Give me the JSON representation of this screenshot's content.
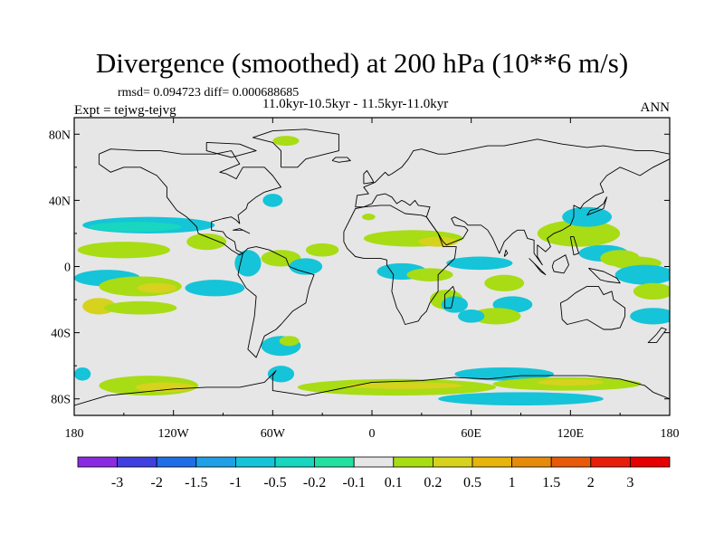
{
  "title": "Divergence (smoothed) at 200 hPa (10**6 m/s)",
  "stats": "rmsd= 0.094723 diff= 0.000688685",
  "experiment": "Expt = tejwg-tejvg",
  "period": "11.0kyr-10.5kyr - 11.5kyr-11.0kyr",
  "season": "ANN",
  "lat_axis": {
    "labels": [
      "80N",
      "40N",
      "0",
      "40S",
      "80S"
    ],
    "values": [
      80,
      40,
      0,
      -40,
      -80
    ],
    "range": [
      -90,
      90
    ]
  },
  "lon_axis": {
    "labels": [
      "180",
      "120W",
      "60W",
      "0",
      "60E",
      "120E",
      "180"
    ],
    "values": [
      -180,
      -120,
      -60,
      0,
      60,
      120,
      180
    ],
    "range": [
      -180,
      180
    ]
  },
  "colorbar": {
    "labels": [
      "-3",
      "-2",
      "-1.5",
      "-1",
      "-0.5",
      "-0.2",
      "-0.1",
      "0.1",
      "0.2",
      "0.5",
      "1",
      "1.5",
      "2",
      "3"
    ],
    "colors": [
      "#8a2be2",
      "#4040e0",
      "#1e6fe6",
      "#1fa0e6",
      "#15c4d8",
      "#18d6c0",
      "#22e0a0",
      "#e6e6e6",
      "#a8dc14",
      "#d6d21e",
      "#e6b40a",
      "#e68a0a",
      "#e65a0a",
      "#e61e0a",
      "#e60000"
    ]
  },
  "map_colors": {
    "background": "#e6e6e6",
    "coast": "#000000"
  },
  "fields": [
    {
      "lon": -135,
      "lat": 25,
      "rlon": 40,
      "rlat": 5,
      "c": 4
    },
    {
      "lon": -143,
      "lat": 24,
      "rlon": 28,
      "rlat": 3,
      "c": 5
    },
    {
      "lon": -150,
      "lat": 10,
      "rlon": 28,
      "rlat": 5,
      "c": 8
    },
    {
      "lon": -100,
      "lat": 15,
      "rlon": 12,
      "rlat": 5,
      "c": 8
    },
    {
      "lon": -160,
      "lat": -7,
      "rlon": 20,
      "rlat": 5,
      "c": 4
    },
    {
      "lon": -140,
      "lat": -12,
      "rlon": 25,
      "rlat": 6,
      "c": 8
    },
    {
      "lon": -130,
      "lat": -13,
      "rlon": 12,
      "rlat": 3,
      "c": 9
    },
    {
      "lon": -95,
      "lat": -13,
      "rlon": 18,
      "rlat": 5,
      "c": 4
    },
    {
      "lon": -165,
      "lat": -24,
      "rlon": 10,
      "rlat": 5,
      "c": 9
    },
    {
      "lon": -140,
      "lat": -25,
      "rlon": 22,
      "rlat": 4,
      "c": 8
    },
    {
      "lon": -75,
      "lat": 2,
      "rlon": 8,
      "rlat": 8,
      "c": 4
    },
    {
      "lon": -55,
      "lat": 5,
      "rlon": 12,
      "rlat": 5,
      "c": 8
    },
    {
      "lon": -40,
      "lat": 0,
      "rlon": 10,
      "rlat": 5,
      "c": 4
    },
    {
      "lon": -30,
      "lat": 10,
      "rlon": 10,
      "rlat": 4,
      "c": 8
    },
    {
      "lon": -60,
      "lat": 40,
      "rlon": 6,
      "rlat": 4,
      "c": 4
    },
    {
      "lon": -55,
      "lat": -48,
      "rlon": 12,
      "rlat": 6,
      "c": 4
    },
    {
      "lon": -50,
      "lat": -45,
      "rlon": 6,
      "rlat": 3,
      "c": 8
    },
    {
      "lon": -2,
      "lat": 30,
      "rlon": 4,
      "rlat": 2,
      "c": 8
    },
    {
      "lon": 25,
      "lat": 17,
      "rlon": 30,
      "rlat": 5,
      "c": 8
    },
    {
      "lon": 40,
      "lat": 15,
      "rlon": 12,
      "rlat": 3,
      "c": 9
    },
    {
      "lon": 18,
      "lat": -3,
      "rlon": 15,
      "rlat": 5,
      "c": 4
    },
    {
      "lon": 35,
      "lat": -5,
      "rlon": 14,
      "rlat": 4,
      "c": 8
    },
    {
      "lon": 65,
      "lat": 2,
      "rlon": 20,
      "rlat": 4,
      "c": 4
    },
    {
      "lon": 45,
      "lat": -20,
      "rlon": 10,
      "rlat": 6,
      "c": 8
    },
    {
      "lon": 50,
      "lat": -23,
      "rlon": 8,
      "rlat": 5,
      "c": 4
    },
    {
      "lon": 80,
      "lat": -10,
      "rlon": 12,
      "rlat": 5,
      "c": 8
    },
    {
      "lon": 85,
      "lat": -23,
      "rlon": 12,
      "rlat": 5,
      "c": 4
    },
    {
      "lon": 75,
      "lat": -30,
      "rlon": 15,
      "rlat": 5,
      "c": 8
    },
    {
      "lon": 60,
      "lat": -30,
      "rlon": 8,
      "rlat": 4,
      "c": 4
    },
    {
      "lon": 125,
      "lat": 20,
      "rlon": 25,
      "rlat": 8,
      "c": 8
    },
    {
      "lon": 130,
      "lat": 30,
      "rlon": 15,
      "rlat": 6,
      "c": 4
    },
    {
      "lon": 140,
      "lat": 8,
      "rlon": 15,
      "rlat": 5,
      "c": 4
    },
    {
      "lon": 150,
      "lat": 5,
      "rlon": 12,
      "rlat": 5,
      "c": 8
    },
    {
      "lon": 160,
      "lat": 2,
      "rlon": 15,
      "rlat": 4,
      "c": 8
    },
    {
      "lon": 165,
      "lat": -5,
      "rlon": 18,
      "rlat": 6,
      "c": 4
    },
    {
      "lon": 170,
      "lat": -15,
      "rlon": 12,
      "rlat": 5,
      "c": 8
    },
    {
      "lon": 170,
      "lat": -30,
      "rlon": 14,
      "rlat": 5,
      "c": 4
    },
    {
      "lon": -135,
      "lat": -72,
      "rlon": 30,
      "rlat": 6,
      "c": 8
    },
    {
      "lon": -125,
      "lat": -73,
      "rlon": 18,
      "rlat": 3,
      "c": 9
    },
    {
      "lon": 15,
      "lat": -73,
      "rlon": 60,
      "rlat": 5,
      "c": 8
    },
    {
      "lon": 20,
      "lat": -72,
      "rlon": 35,
      "rlat": 2,
      "c": 9
    },
    {
      "lon": 80,
      "lat": -65,
      "rlon": 30,
      "rlat": 4,
      "c": 4
    },
    {
      "lon": 118,
      "lat": -71,
      "rlon": 45,
      "rlat": 4,
      "c": 8
    },
    {
      "lon": 120,
      "lat": -70,
      "rlon": 20,
      "rlat": 2,
      "c": 9
    },
    {
      "lon": 90,
      "lat": -80,
      "rlon": 50,
      "rlat": 4,
      "c": 4
    },
    {
      "lon": -175,
      "lat": -65,
      "rlon": 5,
      "rlat": 4,
      "c": 4
    },
    {
      "lon": -55,
      "lat": -65,
      "rlon": 8,
      "rlat": 5,
      "c": 4
    },
    {
      "lon": -52,
      "lat": 76,
      "rlon": 8,
      "rlat": 3,
      "c": 8
    }
  ],
  "coastlines": [
    [
      [
        -165,
        68
      ],
      [
        -158,
        71
      ],
      [
        -140,
        70
      ],
      [
        -128,
        70
      ],
      [
        -115,
        68
      ],
      [
        -95,
        68
      ],
      [
        -85,
        70
      ],
      [
        -80,
        62
      ],
      [
        -92,
        57
      ],
      [
        -88,
        56
      ],
      [
        -82,
        53
      ],
      [
        -78,
        60
      ],
      [
        -65,
        60
      ],
      [
        -60,
        55
      ],
      [
        -55,
        48
      ],
      [
        -65,
        45
      ],
      [
        -70,
        42
      ],
      [
        -75,
        38
      ],
      [
        -76,
        35
      ],
      [
        -81,
        31
      ],
      [
        -80,
        26
      ],
      [
        -82,
        28
      ],
      [
        -85,
        30
      ],
      [
        -90,
        29
      ],
      [
        -97,
        27
      ],
      [
        -97,
        22
      ],
      [
        -90,
        21
      ],
      [
        -88,
        18
      ],
      [
        -83,
        15
      ],
      [
        -82,
        10
      ],
      [
        -78,
        8
      ],
      [
        -80,
        7
      ],
      [
        -85,
        10
      ],
      [
        -90,
        14
      ],
      [
        -95,
        16
      ],
      [
        -105,
        20
      ],
      [
        -106,
        24
      ],
      [
        -112,
        30
      ],
      [
        -115,
        32
      ],
      [
        -118,
        34
      ],
      [
        -124,
        42
      ],
      [
        -124,
        48
      ],
      [
        -130,
        55
      ],
      [
        -140,
        60
      ],
      [
        -150,
        60
      ],
      [
        -158,
        57
      ],
      [
        -165,
        62
      ],
      [
        -165,
        68
      ]
    ],
    [
      [
        -78,
        8
      ],
      [
        -75,
        11
      ],
      [
        -70,
        12
      ],
      [
        -62,
        10
      ],
      [
        -52,
        5
      ],
      [
        -50,
        0
      ],
      [
        -45,
        -2
      ],
      [
        -35,
        -5
      ],
      [
        -38,
        -13
      ],
      [
        -40,
        -22
      ],
      [
        -48,
        -27
      ],
      [
        -55,
        -35
      ],
      [
        -58,
        -38
      ],
      [
        -65,
        -42
      ],
      [
        -68,
        -50
      ],
      [
        -70,
        -55
      ],
      [
        -75,
        -50
      ],
      [
        -73,
        -40
      ],
      [
        -71,
        -30
      ],
      [
        -70,
        -18
      ],
      [
        -76,
        -13
      ],
      [
        -81,
        -5
      ],
      [
        -80,
        0
      ],
      [
        -78,
        8
      ]
    ],
    [
      [
        -55,
        60
      ],
      [
        -45,
        60
      ],
      [
        -40,
        65
      ],
      [
        -20,
        70
      ],
      [
        -20,
        80
      ],
      [
        -40,
        83
      ],
      [
        -60,
        82
      ],
      [
        -72,
        78
      ],
      [
        -60,
        75
      ],
      [
        -55,
        70
      ],
      [
        -55,
        60
      ]
    ],
    [
      [
        -10,
        36
      ],
      [
        -9,
        43
      ],
      [
        -2,
        44
      ],
      [
        -5,
        48
      ],
      [
        2,
        51
      ],
      [
        5,
        54
      ],
      [
        8,
        57
      ],
      [
        10,
        55
      ],
      [
        12,
        56
      ],
      [
        18,
        60
      ],
      [
        22,
        65
      ],
      [
        25,
        70
      ],
      [
        30,
        71
      ],
      [
        40,
        68
      ],
      [
        45,
        68
      ],
      [
        55,
        70
      ],
      [
        70,
        73
      ],
      [
        80,
        73
      ],
      [
        100,
        77
      ],
      [
        115,
        74
      ],
      [
        130,
        72
      ],
      [
        140,
        73
      ],
      [
        160,
        70
      ],
      [
        170,
        70
      ],
      [
        180,
        68
      ],
      [
        180,
        65
      ],
      [
        170,
        60
      ],
      [
        162,
        55
      ],
      [
        155,
        58
      ],
      [
        150,
        60
      ],
      [
        142,
        55
      ],
      [
        138,
        50
      ],
      [
        140,
        45
      ],
      [
        135,
        43
      ],
      [
        128,
        38
      ],
      [
        126,
        35
      ],
      [
        122,
        37
      ],
      [
        122,
        30
      ],
      [
        120,
        25
      ],
      [
        115,
        22
      ],
      [
        110,
        20
      ],
      [
        106,
        17
      ],
      [
        108,
        12
      ],
      [
        105,
        9
      ],
      [
        100,
        13
      ],
      [
        100,
        6
      ],
      [
        103,
        1
      ],
      [
        98,
        8
      ],
      [
        98,
        16
      ],
      [
        94,
        17
      ],
      [
        92,
        22
      ],
      [
        88,
        22
      ],
      [
        85,
        20
      ],
      [
        80,
        15
      ],
      [
        77,
        8
      ],
      [
        73,
        17
      ],
      [
        70,
        22
      ],
      [
        66,
        25
      ],
      [
        58,
        25
      ],
      [
        56,
        27
      ],
      [
        50,
        30
      ],
      [
        48,
        29
      ],
      [
        50,
        25
      ],
      [
        56,
        24
      ],
      [
        58,
        22
      ],
      [
        55,
        17
      ],
      [
        45,
        13
      ],
      [
        43,
        15
      ],
      [
        40,
        20
      ],
      [
        35,
        27
      ],
      [
        33,
        30
      ],
      [
        35,
        36
      ],
      [
        28,
        37
      ],
      [
        26,
        40
      ],
      [
        23,
        37
      ],
      [
        20,
        39
      ],
      [
        18,
        40
      ],
      [
        15,
        38
      ],
      [
        12,
        42
      ],
      [
        8,
        44
      ],
      [
        3,
        43
      ],
      [
        0,
        38
      ],
      [
        -5,
        36
      ],
      [
        -10,
        36
      ]
    ],
    [
      [
        -17,
        21
      ],
      [
        -10,
        35
      ],
      [
        -5,
        36
      ],
      [
        5,
        37
      ],
      [
        11,
        37
      ],
      [
        20,
        32
      ],
      [
        30,
        31
      ],
      [
        33,
        30
      ],
      [
        35,
        27
      ],
      [
        40,
        20
      ],
      [
        43,
        12
      ],
      [
        51,
        12
      ],
      [
        50,
        5
      ],
      [
        45,
        0
      ],
      [
        40,
        -5
      ],
      [
        40,
        -15
      ],
      [
        35,
        -22
      ],
      [
        33,
        -27
      ],
      [
        30,
        -30
      ],
      [
        28,
        -33
      ],
      [
        20,
        -35
      ],
      [
        18,
        -30
      ],
      [
        15,
        -25
      ],
      [
        12,
        -15
      ],
      [
        13,
        -5
      ],
      [
        9,
        1
      ],
      [
        9,
        4
      ],
      [
        5,
        5
      ],
      [
        -5,
        5
      ],
      [
        -10,
        6
      ],
      [
        -15,
        11
      ],
      [
        -17,
        15
      ],
      [
        -17,
        21
      ]
    ],
    [
      [
        44,
        -25
      ],
      [
        48,
        -25
      ],
      [
        50,
        -15
      ],
      [
        49,
        -12
      ],
      [
        44,
        -17
      ],
      [
        44,
        -25
      ]
    ],
    [
      [
        114,
        -22
      ],
      [
        118,
        -20
      ],
      [
        123,
        -16
      ],
      [
        130,
        -12
      ],
      [
        137,
        -12
      ],
      [
        140,
        -17
      ],
      [
        145,
        -15
      ],
      [
        146,
        -20
      ],
      [
        153,
        -25
      ],
      [
        153,
        -30
      ],
      [
        150,
        -37
      ],
      [
        145,
        -38
      ],
      [
        140,
        -38
      ],
      [
        135,
        -35
      ],
      [
        130,
        -32
      ],
      [
        118,
        -35
      ],
      [
        115,
        -32
      ],
      [
        114,
        -22
      ]
    ],
    [
      [
        -180,
        -84
      ],
      [
        -160,
        -78
      ],
      [
        -140,
        -76
      ],
      [
        -120,
        -74
      ],
      [
        -100,
        -73
      ],
      [
        -80,
        -73
      ],
      [
        -65,
        -70
      ],
      [
        -58,
        -63
      ],
      [
        -60,
        -66
      ],
      [
        -60,
        -75
      ],
      [
        -40,
        -78
      ],
      [
        -30,
        -76
      ],
      [
        -10,
        -72
      ],
      [
        0,
        -70
      ],
      [
        30,
        -69
      ],
      [
        50,
        -67
      ],
      [
        70,
        -68
      ],
      [
        90,
        -66
      ],
      [
        110,
        -66
      ],
      [
        130,
        -66
      ],
      [
        150,
        -68
      ],
      [
        165,
        -72
      ],
      [
        170,
        -76
      ],
      [
        180,
        -80
      ]
    ],
    [
      [
        -5,
        50
      ],
      [
        -5,
        56
      ],
      [
        -3,
        58
      ],
      [
        0,
        53
      ],
      [
        1,
        51
      ],
      [
        -5,
        50
      ]
    ],
    [
      [
        -24,
        64
      ],
      [
        -22,
        66
      ],
      [
        -15,
        66
      ],
      [
        -13,
        64
      ],
      [
        -20,
        63
      ],
      [
        -24,
        64
      ]
    ],
    [
      [
        130,
        31
      ],
      [
        132,
        34
      ],
      [
        136,
        35
      ],
      [
        140,
        38
      ],
      [
        142,
        42
      ],
      [
        140,
        35
      ],
      [
        135,
        33
      ],
      [
        130,
        31
      ]
    ],
    [
      [
        95,
        5
      ],
      [
        100,
        0
      ],
      [
        105,
        -5
      ],
      [
        102,
        -3
      ],
      [
        98,
        2
      ],
      [
        95,
        5
      ]
    ],
    [
      [
        109,
        0
      ],
      [
        110,
        3
      ],
      [
        117,
        7
      ],
      [
        119,
        1
      ],
      [
        116,
        -4
      ],
      [
        110,
        -3
      ],
      [
        109,
        0
      ]
    ],
    [
      [
        131,
        -1
      ],
      [
        140,
        -3
      ],
      [
        148,
        -7
      ],
      [
        150,
        -10
      ],
      [
        142,
        -9
      ],
      [
        138,
        -8
      ],
      [
        131,
        -1
      ]
    ],
    [
      [
        172,
        -41
      ],
      [
        175,
        -37
      ],
      [
        178,
        -38
      ],
      [
        172,
        -46
      ],
      [
        167,
        -46
      ],
      [
        172,
        -41
      ]
    ],
    [
      [
        80,
        6
      ],
      [
        82,
        8
      ],
      [
        81,
        10
      ],
      [
        80,
        6
      ]
    ],
    [
      [
        -80,
        23
      ],
      [
        -74,
        20
      ],
      [
        -78,
        22
      ],
      [
        -84,
        22
      ],
      [
        -80,
        23
      ]
    ],
    [
      [
        120,
        18
      ],
      [
        122,
        18
      ],
      [
        125,
        8
      ],
      [
        122,
        7
      ],
      [
        120,
        18
      ]
    ],
    [
      [
        -100,
        75
      ],
      [
        -80,
        74
      ],
      [
        -70,
        70
      ],
      [
        -85,
        66
      ],
      [
        -100,
        70
      ],
      [
        -100,
        75
      ]
    ]
  ]
}
